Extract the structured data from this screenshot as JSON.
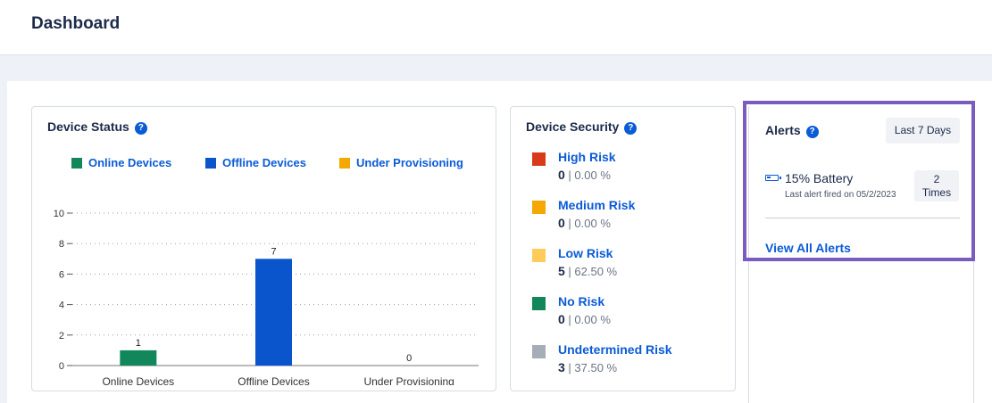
{
  "header": {
    "title": "Dashboard"
  },
  "device_status": {
    "title": "Device Status",
    "help_glyph": "?",
    "legend": [
      {
        "label": "Online Devices",
        "color": "#11875b"
      },
      {
        "label": "Offline Devices",
        "color": "#0a55cc"
      },
      {
        "label": "Under Provisioning",
        "color": "#f5a800"
      }
    ]
  },
  "chart_data": {
    "type": "bar",
    "categories": [
      "Online Devices",
      "Offline Devices",
      "Under Provisioning"
    ],
    "values": [
      1,
      7,
      0
    ],
    "colors": [
      "#11875b",
      "#0a55cc",
      "#f5a800"
    ],
    "yticks": [
      0,
      2,
      4,
      6,
      8,
      10
    ],
    "ylim": [
      0,
      10
    ],
    "data_labels": true,
    "grid": "dotted horizontal"
  },
  "device_security": {
    "title": "Device Security",
    "help_glyph": "?",
    "items": [
      {
        "label": "High Risk",
        "count": "0",
        "pct": "| 0.00 %",
        "color": "#d83a1c"
      },
      {
        "label": "Medium Risk",
        "count": "0",
        "pct": "| 0.00 %",
        "color": "#f5a800"
      },
      {
        "label": "Low Risk",
        "count": "5",
        "pct": "| 62.50 %",
        "color": "#ffcc5c"
      },
      {
        "label": "No Risk",
        "count": "0",
        "pct": "| 0.00 %",
        "color": "#11875b"
      },
      {
        "label": "Undetermined Risk",
        "count": "3",
        "pct": "| 37.50 %",
        "color": "#a7adb7"
      }
    ]
  },
  "alerts": {
    "title": "Alerts",
    "help_glyph": "?",
    "range_button": "Last 7 Days",
    "items": [
      {
        "icon": "battery-icon",
        "title": "15% Battery",
        "subtitle": "Last alert fired on 05/2/2023",
        "count": "2",
        "count_unit": "Times"
      }
    ],
    "view_all": "View All Alerts"
  }
}
